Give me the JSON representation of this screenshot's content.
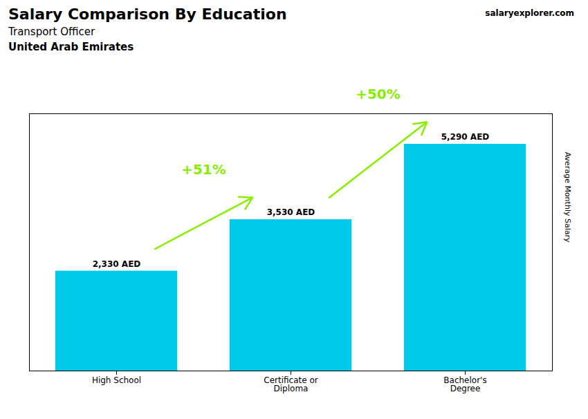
{
  "chart_data": {
    "type": "bar",
    "title": "Salary Comparison By Education",
    "subtitle": [
      "Transport Officer",
      "United Arab Emirates"
    ],
    "ylabel": "Average Monthly Salary",
    "categories": [
      "High School",
      "Certificate or\nDiploma",
      "Bachelor's\nDegree"
    ],
    "values": [
      2330,
      3530,
      5290
    ],
    "value_labels": [
      "2,330 AED",
      "3,530 AED",
      "5,290 AED"
    ],
    "data_labels": true,
    "color": "#00c8e8",
    "ylim": [
      0,
      6000
    ],
    "tick_labels": "x",
    "grid": false,
    "annotations": [
      {
        "text": "+51%",
        "from": "High School",
        "to": "Certificate or\nDiploma",
        "color": "#88ee00"
      },
      {
        "text": "+50%",
        "from": "Certificate or\nDiploma",
        "to": "Bachelor's\nDegree",
        "color": "#88ee00"
      },
      {
        "text": "salaryexplorer.com"
      }
    ]
  }
}
